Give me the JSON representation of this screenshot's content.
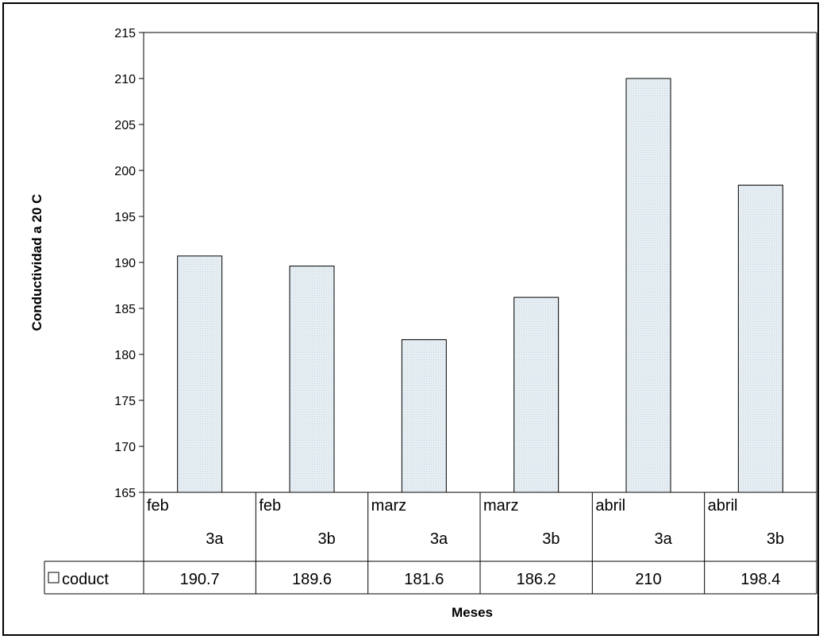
{
  "colors": {
    "bar_fill": "#e6eef3",
    "bar_stroke": "#000000",
    "axis": "#000000",
    "background": "#ffffff"
  },
  "chart_data": {
    "type": "bar",
    "ylabel": "Conductividad a 20 C",
    "xlabel": "Meses",
    "ylim": [
      165,
      215
    ],
    "yticks": [
      165,
      170,
      175,
      180,
      185,
      190,
      195,
      200,
      205,
      210,
      215
    ],
    "grid": false,
    "categories": [
      {
        "line1": "feb",
        "line2": "3a"
      },
      {
        "line1": "feb",
        "line2": "3b"
      },
      {
        "line1": "marz",
        "line2": "3a"
      },
      {
        "line1": "marz",
        "line2": "3b"
      },
      {
        "line1": "abril",
        "line2": "3a"
      },
      {
        "line1": "abril",
        "line2": "3b"
      }
    ],
    "series": [
      {
        "name": "coduct",
        "values": [
          190.7,
          189.6,
          181.6,
          186.2,
          210,
          198.4
        ]
      }
    ],
    "data_table": true,
    "legend": "data-table"
  }
}
